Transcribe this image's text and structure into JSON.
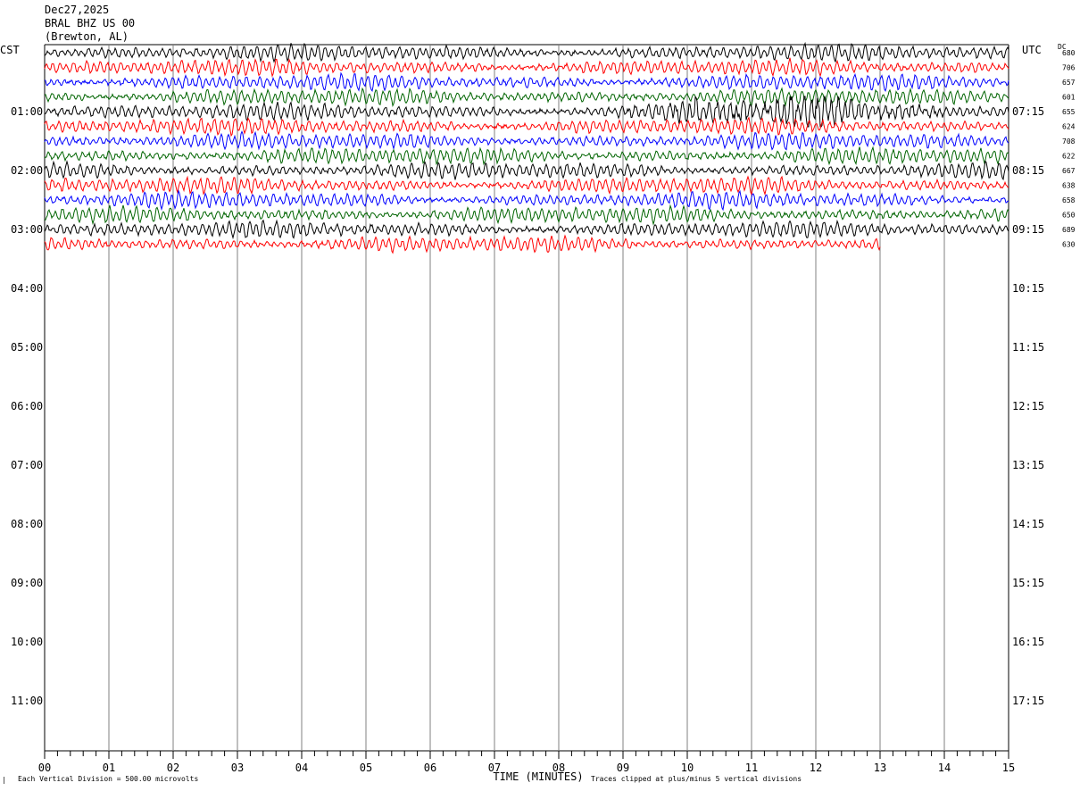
{
  "header": {
    "date": "Dec27,2025",
    "station": "BRAL BHZ US 00",
    "location": "(Brewton, AL)"
  },
  "left_tz": "CST",
  "right_tz": "UTC",
  "dc_label": "DC",
  "footer": {
    "scale_note": "Each Vertical Division =  500.00 microvolts",
    "clip_note": "Traces clipped at plus/minus 5 vertical divisions",
    "corner_mark": "∣"
  },
  "colors": {
    "black": "#000000",
    "red": "#ff0000",
    "blue": "#0000ff",
    "green": "#006400",
    "grid": "#808080"
  },
  "chart_data": {
    "type": "line",
    "title": "Dec27,2025 BRAL BHZ US 00 (Brewton, AL)",
    "xlabel": "TIME (MINUTES)",
    "xlim": [
      0,
      15
    ],
    "x_ticks": [
      "00",
      "01",
      "02",
      "03",
      "04",
      "05",
      "06",
      "07",
      "08",
      "09",
      "10",
      "11",
      "12",
      "13",
      "14",
      "15"
    ],
    "left_hour_labels": [
      "01:00",
      "02:00",
      "03:00",
      "04:00",
      "05:00",
      "06:00",
      "07:00",
      "08:00",
      "09:00",
      "10:00",
      "11:00"
    ],
    "right_hour_labels": [
      "07:15",
      "08:15",
      "09:15",
      "10:15",
      "11:15",
      "12:15",
      "13:15",
      "14:15",
      "15:15",
      "16:15",
      "17:15"
    ],
    "lines_per_hour": 4,
    "trace_color_cycle": [
      "black",
      "red",
      "blue",
      "green"
    ],
    "dc_offsets": [
      "680",
      "706",
      "657",
      "601",
      "655",
      "624",
      "708",
      "622",
      "667",
      "638",
      "658",
      "650",
      "689",
      "630"
    ],
    "trace_end_minutes": [
      15,
      15,
      15,
      15,
      15,
      15,
      15,
      15,
      15,
      15,
      15,
      15,
      15,
      13
    ],
    "event_window_minutes": [
      8.6,
      14.4
    ],
    "event_trace_index": 4,
    "clip_divisions": 5,
    "division_microvolts": 500.0
  }
}
